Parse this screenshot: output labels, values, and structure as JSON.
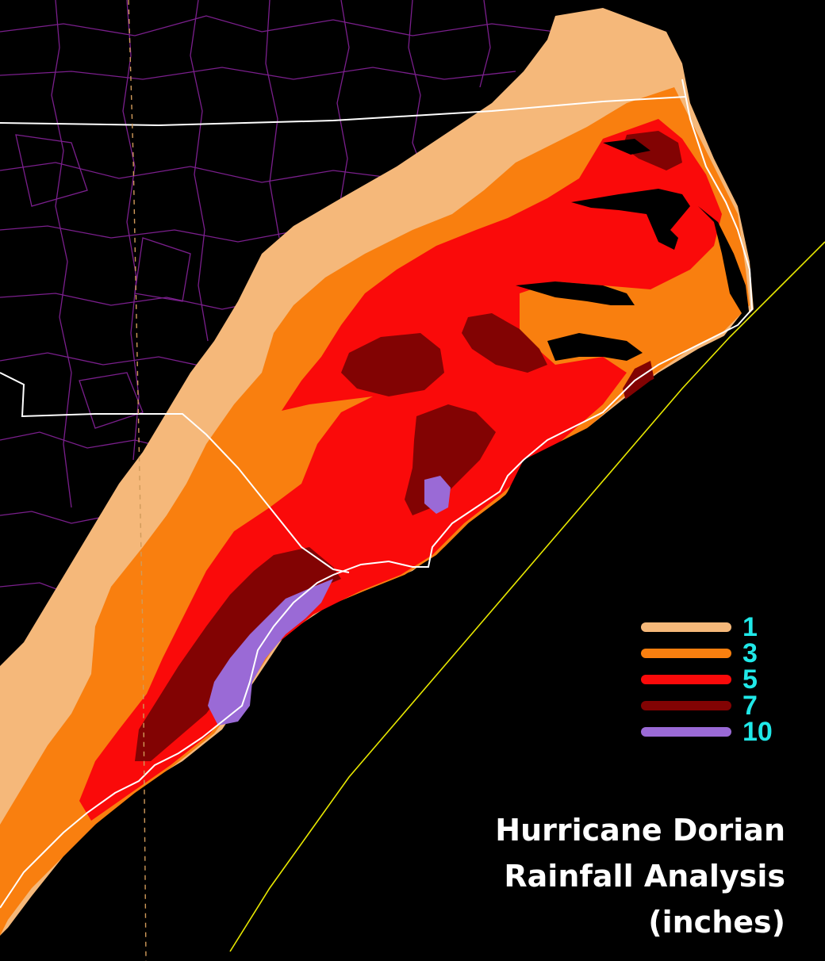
{
  "map": {
    "colors": {
      "background": "#000000",
      "county_lines": "#7a1f8c",
      "state_lines": "#ffffff",
      "track_line": "#e8e800"
    }
  },
  "legend": {
    "items": [
      {
        "label": "1",
        "color": "#f5b87a"
      },
      {
        "label": "3",
        "color": "#f97f0f"
      },
      {
        "label": "5",
        "color": "#fa0a0a"
      },
      {
        "label": "7",
        "color": "#820303"
      },
      {
        "label": "10",
        "color": "#9a6ad6"
      }
    ]
  },
  "title": {
    "line1": "Hurricane Dorian",
    "line2": "Rainfall Analysis",
    "line3": "(inches)"
  }
}
